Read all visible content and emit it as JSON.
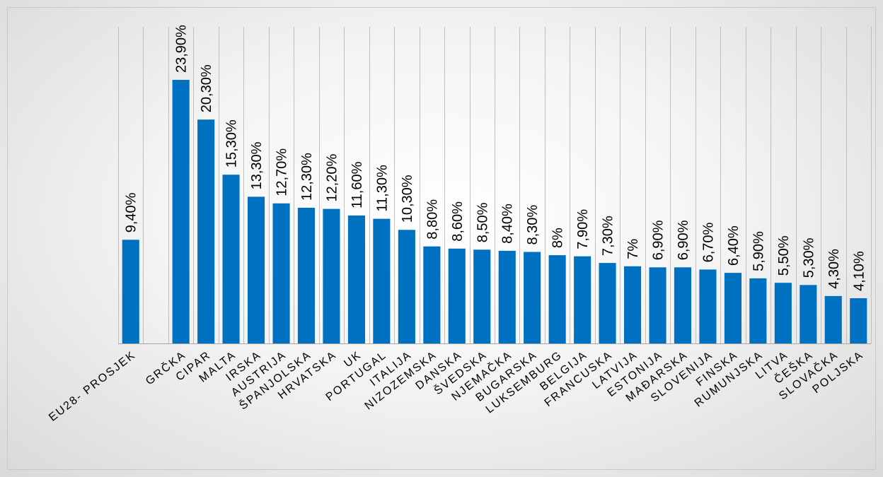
{
  "chart_data": {
    "type": "bar",
    "title": "",
    "xlabel": "",
    "ylabel": "",
    "ylim": [
      0,
      25
    ],
    "grid": "vertical",
    "legend": "none",
    "bar_color": "#0070C0",
    "grid_color": "#bfbfbf",
    "categories": [
      "EU28- PROSJEK",
      "",
      "GRČKA",
      "CIPAR",
      "MALTA",
      "IRSKA",
      "AUSTRIJA",
      "ŠPANJOLSKA",
      "HRVATSKA",
      "UK",
      "PORTUGAL",
      "ITALIJA",
      "NIZOZEMSKA",
      "DANSKA",
      "ŠVEDSKA",
      "NJEMAČKA",
      "BUGARSKA",
      "LUKSEMBURG",
      "BELGIJA",
      "FRANCUSKA",
      "LATVIJA",
      "ESTONIJA",
      "MAĐARSKA",
      "SLOVENIJA",
      "FINSKA",
      "RUMUNJSKA",
      "LITVA",
      "ČEŠKA",
      "SLOVAČKA",
      "POLJSKA"
    ],
    "values": [
      9.4,
      null,
      23.9,
      20.3,
      15.3,
      13.3,
      12.7,
      12.3,
      12.2,
      11.6,
      11.3,
      10.3,
      8.8,
      8.6,
      8.5,
      8.4,
      8.3,
      8.0,
      7.9,
      7.3,
      7.0,
      6.9,
      6.9,
      6.7,
      6.4,
      5.9,
      5.5,
      5.3,
      4.3,
      4.1
    ],
    "value_labels": [
      "9,40%",
      "",
      "23,90%",
      "20,30%",
      "15,30%",
      "13,30%",
      "12,70%",
      "12,30%",
      "12,20%",
      "11,60%",
      "11,30%",
      "10,30%",
      "8,80%",
      "8,60%",
      "8,50%",
      "8,40%",
      "8,30%",
      "8%",
      "7,90%",
      "7,30%",
      "7%",
      "6,90%",
      "6,90%",
      "6,70%",
      "6,40%",
      "5,90%",
      "5,50%",
      "5,30%",
      "4,30%",
      "4,10%"
    ]
  }
}
